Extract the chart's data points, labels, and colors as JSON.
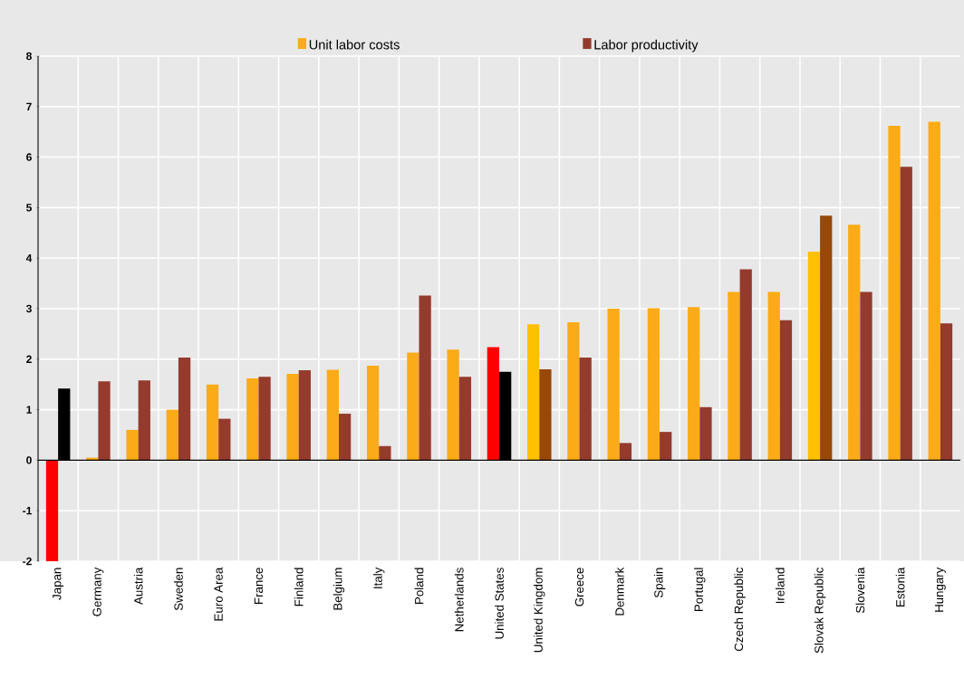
{
  "chart_data": {
    "type": "bar",
    "categories": [
      "Japan",
      "Germany",
      "Austria",
      "Sweden",
      "Euro Area",
      "France",
      "Finland",
      "Belgium",
      "Italy",
      "Poland",
      "Netherlands",
      "United States",
      "United Kingdom",
      "Greece",
      "Denmark",
      "Spain",
      "Portugal",
      "Czech Republic",
      "Ireland",
      "Slovak Republic",
      "Slovenia",
      "Estonia",
      "Hungary"
    ],
    "series": [
      {
        "name": "Unit labor costs",
        "color": "#fbab18",
        "colors": [
          "#ff0000",
          "#fbab18",
          "#fbab18",
          "#fbab18",
          "#fbab18",
          "#fbab18",
          "#fbab18",
          "#fbab18",
          "#fbab18",
          "#fbab18",
          "#fbab18",
          "#ff0000",
          "#ffc000",
          "#fbab18",
          "#fbab18",
          "#fbab18",
          "#fbab18",
          "#fbab18",
          "#fbab18",
          "#ffc000",
          "#fbab18",
          "#fbab18",
          "#fbab18"
        ],
        "values": [
          -2.0,
          0.05,
          0.6,
          1.0,
          1.5,
          1.62,
          1.71,
          1.79,
          1.87,
          2.13,
          2.19,
          2.24,
          2.69,
          2.73,
          3.0,
          3.01,
          3.03,
          3.33,
          3.33,
          4.13,
          4.66,
          6.62,
          6.7
        ]
      },
      {
        "name": "Labor productivity",
        "color": "#943b2e",
        "colors": [
          "#000000",
          "#943b2e",
          "#943b2e",
          "#943b2e",
          "#943b2e",
          "#943b2e",
          "#943b2e",
          "#943b2e",
          "#943b2e",
          "#943b2e",
          "#943b2e",
          "#000000",
          "#984807",
          "#943b2e",
          "#943b2e",
          "#943b2e",
          "#943b2e",
          "#943b2e",
          "#943b2e",
          "#984807",
          "#943b2e",
          "#943b2e",
          "#943b2e"
        ],
        "values": [
          1.42,
          1.56,
          1.58,
          2.03,
          0.82,
          1.65,
          1.78,
          0.92,
          0.28,
          3.26,
          1.65,
          1.75,
          1.8,
          2.03,
          0.34,
          0.56,
          1.05,
          3.78,
          2.77,
          4.84,
          3.33,
          5.81,
          2.71
        ]
      }
    ],
    "ylim": [
      -2,
      8
    ],
    "yticks": [
      -2,
      -1,
      0,
      1,
      2,
      3,
      4,
      5,
      6,
      7,
      8
    ],
    "grid": true,
    "legend": "top"
  }
}
